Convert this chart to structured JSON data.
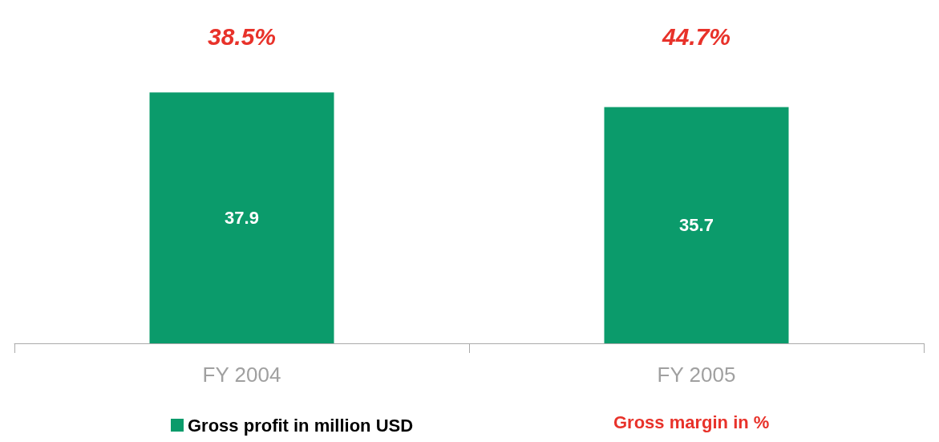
{
  "chart_data": {
    "type": "bar",
    "categories": [
      "FY 2004",
      "FY 2005"
    ],
    "series": [
      {
        "name": "Gross profit in million USD",
        "color": "#0b9b6b",
        "values": [
          37.9,
          35.7
        ]
      }
    ],
    "data_labels": true,
    "legend": "bottom",
    "annotations": [
      "38.5%",
      "44.7%",
      "Gross margin in %"
    ]
  }
}
